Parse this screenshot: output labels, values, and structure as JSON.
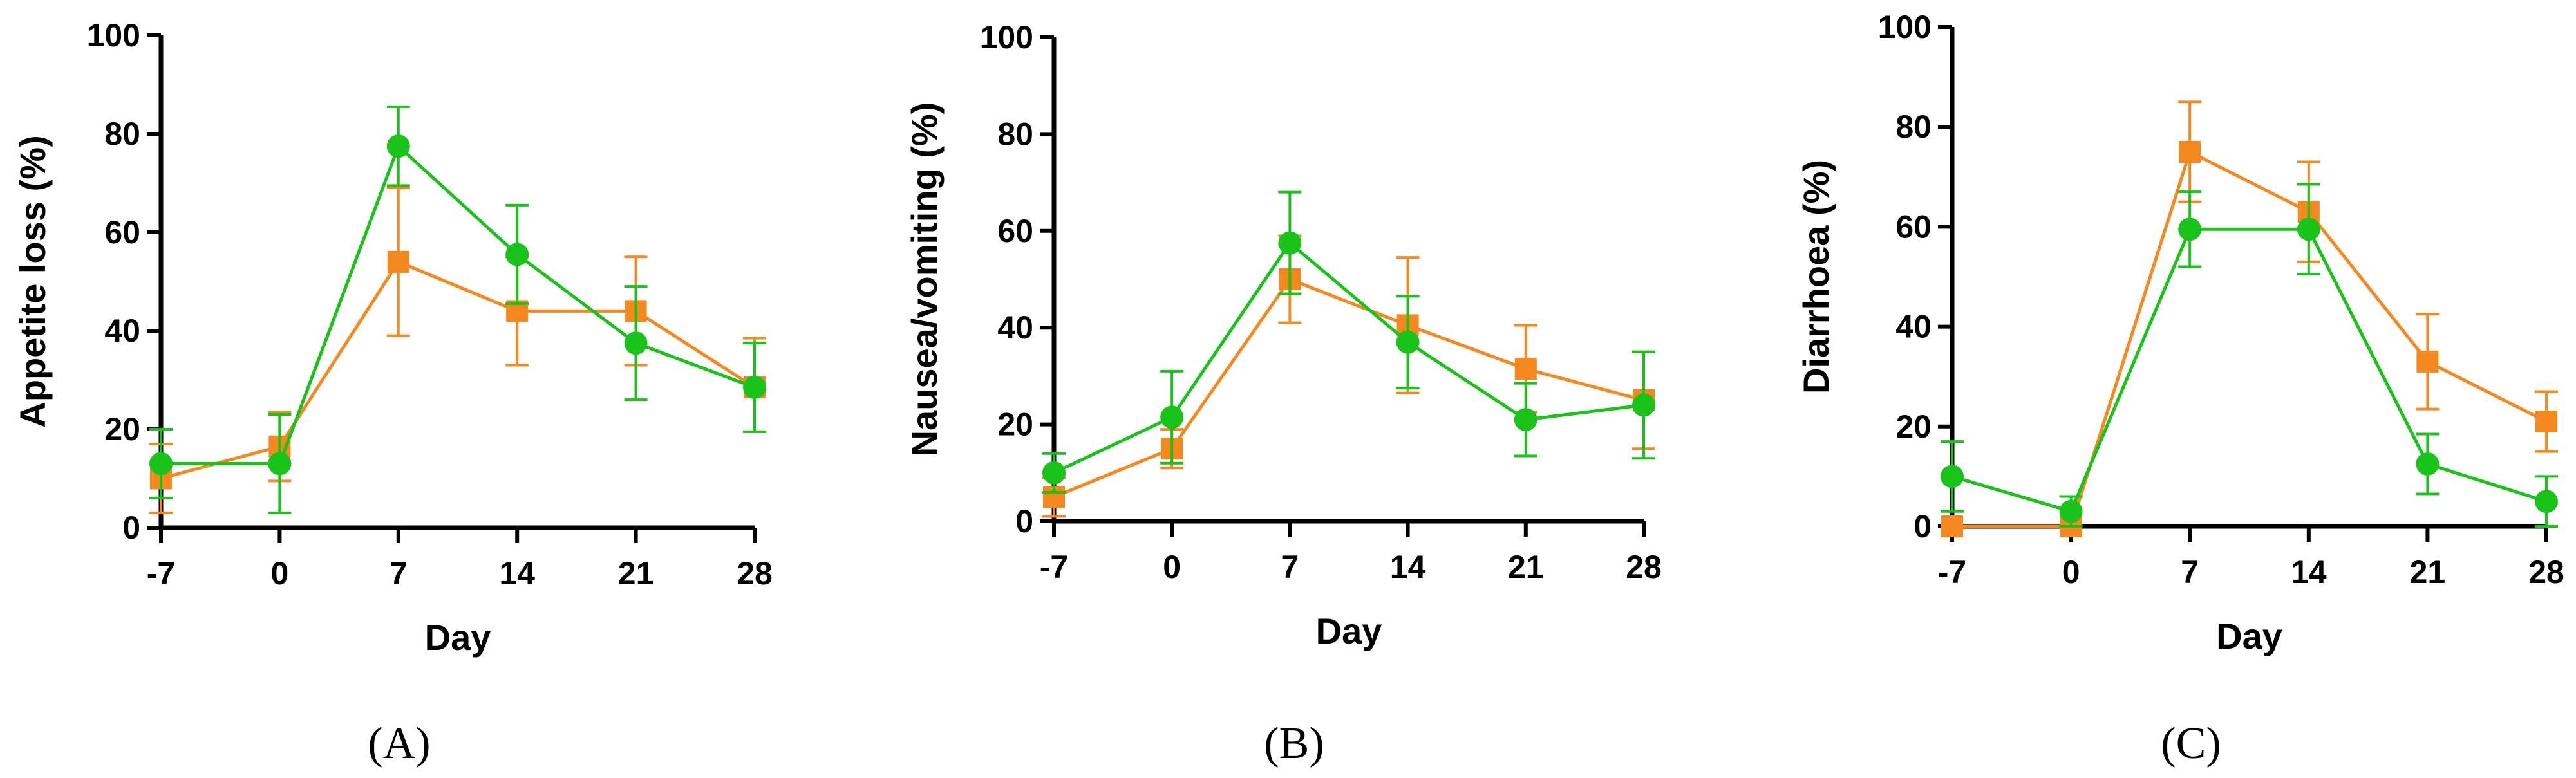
{
  "colors": {
    "orange": "#F5891F",
    "green": "#19C319"
  },
  "chart_data": [
    {
      "type": "line",
      "panel_label": "(A)",
      "xlabel": "Day",
      "ylabel": "Appetite loss (%)",
      "x": [
        -7,
        0,
        7,
        14,
        21,
        28
      ],
      "x_tick_labels": [
        "-7",
        "0",
        "7",
        "14",
        "21",
        "28"
      ],
      "y_tick_labels": [
        "0",
        "20",
        "40",
        "60",
        "80",
        "100"
      ],
      "ylim": [
        0,
        100
      ],
      "series": [
        {
          "name": "orange",
          "marker": "square",
          "values": [
            10,
            16.5,
            54,
            44,
            44,
            28.5
          ],
          "err_low": [
            7,
            7,
            15,
            11,
            11,
            9
          ],
          "err_high": [
            7,
            7,
            15,
            11,
            11,
            10
          ]
        },
        {
          "name": "green",
          "marker": "circle",
          "values": [
            13,
            13,
            77.5,
            55.5,
            37.5,
            28.5
          ],
          "err_low": [
            7,
            10,
            8,
            10,
            11.5,
            9
          ],
          "err_high": [
            7,
            10,
            8,
            10,
            11.5,
            9
          ]
        }
      ]
    },
    {
      "type": "line",
      "panel_label": "(B)",
      "xlabel": "Day",
      "ylabel": "Nausea/vomiting (%)",
      "x": [
        -7,
        0,
        7,
        14,
        21,
        28
      ],
      "x_tick_labels": [
        "-7",
        "0",
        "7",
        "14",
        "21",
        "28"
      ],
      "y_tick_labels": [
        "0",
        "20",
        "40",
        "60",
        "80",
        "100"
      ],
      "ylim": [
        0,
        100
      ],
      "series": [
        {
          "name": "orange",
          "marker": "square",
          "values": [
            5,
            15,
            50,
            40.5,
            31.5,
            25
          ],
          "err_low": [
            4,
            4,
            9,
            14,
            9,
            10
          ],
          "err_high": [
            4,
            4,
            9,
            14,
            9,
            10
          ]
        },
        {
          "name": "green",
          "marker": "circle",
          "values": [
            10,
            21.5,
            57.5,
            37,
            21,
            24
          ],
          "err_low": [
            4,
            9.5,
            10.5,
            9.5,
            7.5,
            11
          ],
          "err_high": [
            4,
            9.5,
            10.5,
            9.5,
            7.5,
            11
          ]
        }
      ]
    },
    {
      "type": "line",
      "panel_label": "(C)",
      "xlabel": "Day",
      "ylabel": "Diarrhoea (%)",
      "x": [
        -7,
        0,
        7,
        14,
        21,
        28
      ],
      "x_tick_labels": [
        "-7",
        "0",
        "7",
        "14",
        "21",
        "28"
      ],
      "y_tick_labels": [
        "0",
        "20",
        "40",
        "60",
        "80",
        "100"
      ],
      "ylim": [
        0,
        100
      ],
      "series": [
        {
          "name": "orange",
          "marker": "square",
          "values": [
            0,
            0,
            75,
            63,
            33,
            21
          ],
          "err_low": [
            0,
            0,
            10,
            10,
            9.5,
            6
          ],
          "err_high": [
            0,
            0,
            10,
            10,
            9.5,
            6
          ]
        },
        {
          "name": "green",
          "marker": "circle",
          "values": [
            10,
            3,
            59.5,
            59.5,
            12.5,
            5
          ],
          "err_low": [
            7,
            3,
            7.5,
            9,
            6,
            5
          ],
          "err_high": [
            7,
            3,
            7.5,
            9,
            6,
            5
          ]
        }
      ]
    }
  ]
}
